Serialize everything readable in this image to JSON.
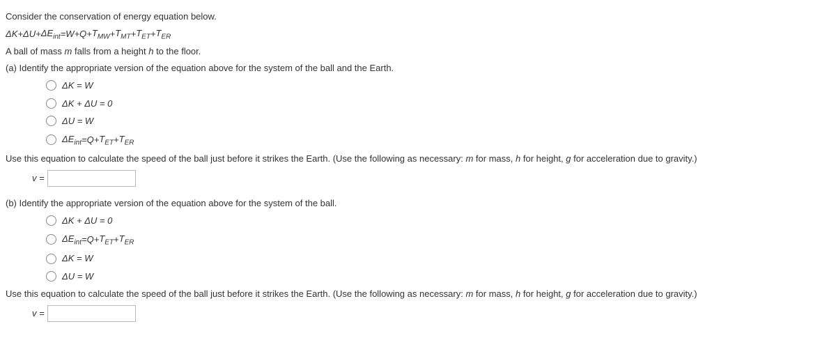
{
  "intro": "Consider the conservation of energy equation below.",
  "main_eq_parts": {
    "dk": "ΔK",
    "plus1": " + ",
    "du": "ΔU",
    "plus2": " + ",
    "deint_sym": "ΔE",
    "deint_sub": "int",
    "eq": " = ",
    "w": "W",
    "plus3": " + ",
    "q": "Q",
    "plus4": " + ",
    "tmw_sym": "T",
    "tmw_sub": "MW",
    "plus5": " + ",
    "tmt_sym": "T",
    "tmt_sub": "MT",
    "plus6": " + ",
    "tet_sym": "T",
    "tet_sub": "ET",
    "plus7": " + ",
    "ter_sym": "T",
    "ter_sub": "ER"
  },
  "setup": {
    "pre": "A ball of mass ",
    "m": "m",
    "mid": " falls from a height ",
    "h": "h",
    "post": " to the floor."
  },
  "part_a": {
    "prompt": "(a) Identify the appropriate version of the equation above for the system of the ball and the Earth.",
    "opt1": "ΔK = W",
    "opt2": "ΔK + ΔU = 0",
    "opt3": "ΔU = W",
    "opt4": {
      "deint_sym": "ΔE",
      "deint_sub": "int",
      "eq": " = ",
      "q": "Q",
      "plus1": " +",
      "tet_sym": "T",
      "tet_sub": "ET",
      "plus2": " + ",
      "ter_sym": "T",
      "ter_sub": "ER"
    }
  },
  "calc_prompt": {
    "pre": "Use this equation to calculate the speed of the ball just before it strikes the Earth. (Use the following as necessary: ",
    "m": "m",
    "m_txt": " for mass, ",
    "h": "h",
    "h_txt": " for height, ",
    "g": "g",
    "g_txt": " for acceleration due to gravity.)"
  },
  "answer_label": "v = ",
  "part_b": {
    "prompt": "(b) Identify the appropriate version of the equation above for the system of the ball.",
    "opt1": "ΔK + ΔU = 0",
    "opt2": {
      "deint_sym": "ΔE",
      "deint_sub": "int",
      "eq": " = ",
      "q": "Q",
      "plus1": " +",
      "tet_sym": "T",
      "tet_sub": "ET",
      "plus2": " + ",
      "ter_sym": "T",
      "ter_sub": "ER"
    },
    "opt3": "ΔK = W",
    "opt4": "ΔU = W"
  }
}
